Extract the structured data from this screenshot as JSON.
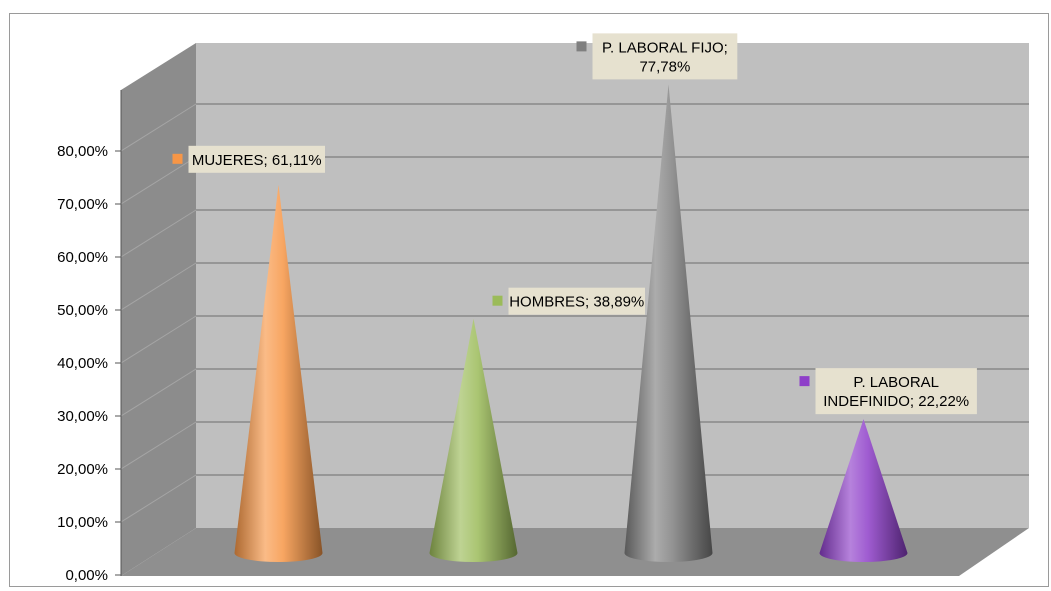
{
  "chart_data": {
    "type": "bar",
    "bar_shape": "cone",
    "categories": [
      "MUJERES",
      "HOMBRES",
      "P. LABORAL FIJO",
      "P. LABORAL INDEFINIDO"
    ],
    "values": [
      61.11,
      38.89,
      77.78,
      22.22
    ],
    "data_labels": [
      [
        "MUJERES; 61,11%"
      ],
      [
        "HOMBRES; 38,89%"
      ],
      [
        "P. LABORAL FIJO;",
        "77,78%"
      ],
      [
        "P. LABORAL",
        "INDEFINIDO; 22,22%"
      ]
    ],
    "colors": [
      "#f79646",
      "#9bbb59",
      "#7f7f7f",
      "#8e3fc9"
    ],
    "y_ticks": [
      0,
      10,
      20,
      30,
      40,
      50,
      60,
      70,
      80
    ],
    "y_tick_labels": [
      "0,00%",
      "10,00%",
      "20,00%",
      "30,00%",
      "40,00%",
      "50,00%",
      "60,00%",
      "70,00%",
      "80,00%"
    ],
    "ylim": [
      0,
      80
    ],
    "title": "",
    "xlabel": "",
    "ylabel": "",
    "grid": true,
    "legend": "none",
    "style_colors": {
      "back_wall": "#bfbfbf",
      "side_wall": "#8c8c8c",
      "floor": "#8f8f8f",
      "gridline": "#6e6e6e",
      "label_box": "#e6e1cf"
    }
  }
}
